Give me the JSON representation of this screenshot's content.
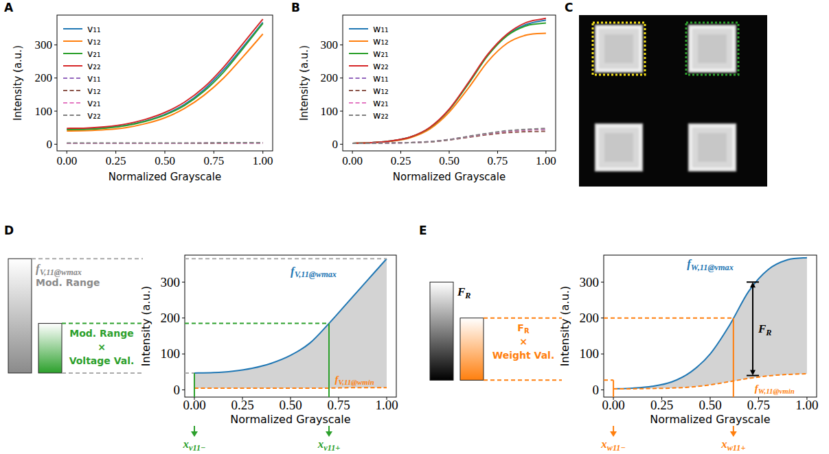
{
  "chart_data": [
    {
      "panel": "A",
      "type": "line",
      "xlabel": "Normalized Grayscale",
      "ylabel": "Intensity (a.u.)",
      "xlim": [
        -0.05,
        1.05
      ],
      "ylim": [
        -20,
        390
      ],
      "xticks": [
        {
          "value": 0,
          "label": "0.00"
        },
        {
          "value": 0.25,
          "label": "0.25"
        },
        {
          "value": 0.5,
          "label": "0.50"
        },
        {
          "value": 0.75,
          "label": "0.75"
        },
        {
          "value": 1,
          "label": "1.00"
        }
      ],
      "yticks": [
        0,
        100,
        200,
        300
      ],
      "legend": "upper left",
      "x": [
        0,
        0.1,
        0.2,
        0.3,
        0.4,
        0.5,
        0.6,
        0.7,
        0.8,
        0.9,
        1
      ],
      "series": [
        {
          "name": "v₁₁",
          "color": "#1f77b4",
          "line_style": "solid",
          "values": [
            45,
            46,
            50,
            57,
            70,
            90,
            120,
            165,
            225,
            295,
            368
          ]
        },
        {
          "name": "v₁₂",
          "color": "#ff7f0e",
          "line_style": "solid",
          "values": [
            40,
            41,
            44,
            50,
            62,
            80,
            108,
            148,
            200,
            265,
            333
          ]
        },
        {
          "name": "v₂₁",
          "color": "#2ca02c",
          "line_style": "solid",
          "values": [
            44,
            45,
            49,
            56,
            69,
            88,
            117,
            160,
            218,
            290,
            365
          ]
        },
        {
          "name": "v₂₂",
          "color": "#d62728",
          "line_style": "solid",
          "values": [
            48,
            49,
            53,
            61,
            75,
            96,
            127,
            172,
            233,
            305,
            378
          ]
        },
        {
          "name": "v₁₁",
          "color": "#9467bd",
          "line_style": "dashed",
          "values": [
            3,
            3,
            3,
            3,
            3,
            3,
            3,
            3,
            4,
            4,
            4
          ]
        },
        {
          "name": "v₁₂",
          "color": "#8c564b",
          "line_style": "dashed",
          "values": [
            3,
            3,
            3,
            3,
            3,
            3,
            3,
            3,
            3,
            4,
            4
          ]
        },
        {
          "name": "v₂₁",
          "color": "#e377c2",
          "line_style": "dashed",
          "values": [
            3,
            3,
            3,
            3,
            3,
            3,
            3,
            4,
            4,
            4,
            4
          ]
        },
        {
          "name": "v₂₂",
          "color": "#7f7f7f",
          "line_style": "dashed",
          "values": [
            4,
            4,
            4,
            4,
            4,
            4,
            4,
            4,
            5,
            5,
            5
          ]
        }
      ]
    },
    {
      "panel": "B",
      "type": "line",
      "xlabel": "Normalized Grayscale",
      "ylabel": "Intensity (a.u.)",
      "xlim": [
        -0.05,
        1.05
      ],
      "ylim": [
        -20,
        390
      ],
      "xticks": [
        {
          "value": 0,
          "label": "0.00"
        },
        {
          "value": 0.25,
          "label": "0.25"
        },
        {
          "value": 0.5,
          "label": "0.50"
        },
        {
          "value": 0.75,
          "label": "0.75"
        },
        {
          "value": 1,
          "label": "1.00"
        }
      ],
      "yticks": [
        0,
        100,
        200,
        300
      ],
      "legend": "upper left",
      "x": [
        0,
        0.1,
        0.2,
        0.3,
        0.4,
        0.5,
        0.6,
        0.7,
        0.8,
        0.9,
        1
      ],
      "series": [
        {
          "name": "w₁₁",
          "color": "#1f77b4",
          "line_style": "solid",
          "values": [
            3,
            5,
            10,
            22,
            50,
            105,
            185,
            270,
            330,
            362,
            375
          ]
        },
        {
          "name": "w₁₂",
          "color": "#ff7f0e",
          "line_style": "solid",
          "values": [
            3,
            5,
            9,
            20,
            46,
            97,
            170,
            250,
            305,
            330,
            335
          ]
        },
        {
          "name": "w₂₁",
          "color": "#2ca02c",
          "line_style": "solid",
          "values": [
            3,
            5,
            10,
            22,
            50,
            104,
            183,
            268,
            328,
            358,
            366
          ]
        },
        {
          "name": "w₂₂",
          "color": "#d62728",
          "line_style": "solid",
          "values": [
            3,
            5,
            10,
            22,
            51,
            106,
            187,
            272,
            333,
            368,
            380
          ]
        },
        {
          "name": "w₁₁",
          "color": "#9467bd",
          "line_style": "dashed",
          "values": [
            3,
            3,
            4,
            5,
            8,
            14,
            23,
            32,
            39,
            43,
            45
          ]
        },
        {
          "name": "w₁₂",
          "color": "#8c564b",
          "line_style": "dashed",
          "values": [
            3,
            3,
            4,
            5,
            7,
            13,
            21,
            29,
            35,
            38,
            39
          ]
        },
        {
          "name": "w₂₁",
          "color": "#e377c2",
          "line_style": "dashed",
          "values": [
            3,
            3,
            4,
            5,
            8,
            14,
            23,
            32,
            39,
            43,
            46
          ]
        },
        {
          "name": "w₂₂",
          "color": "#7f7f7f",
          "line_style": "dashed",
          "values": [
            3,
            3,
            4,
            5,
            8,
            14,
            24,
            33,
            41,
            45,
            48
          ]
        }
      ]
    },
    {
      "panel": "D",
      "type": "line",
      "xlabel": "Normalized Grayscale",
      "ylabel": "Intensity (a.u.)",
      "xlim": [
        -0.05,
        1.05
      ],
      "ylim": [
        -20,
        375
      ],
      "xticks": [
        {
          "value": 0,
          "label": "0.00"
        },
        {
          "value": 0.25,
          "label": "0.25"
        },
        {
          "value": 0.5,
          "label": "0.50"
        },
        {
          "value": 0.75,
          "label": "0.75"
        },
        {
          "value": 1,
          "label": "1.00"
        }
      ],
      "yticks": [
        0,
        100,
        200,
        300
      ],
      "x": [
        0,
        0.1,
        0.2,
        0.3,
        0.4,
        0.5,
        0.6,
        0.7,
        0.8,
        0.9,
        1
      ],
      "series": [
        {
          "label": {
            "main": "f",
            "sub": "V,11@wmax"
          },
          "color": "#1f77b4",
          "line_style": "solid",
          "values": [
            47,
            48,
            52,
            60,
            74,
            96,
            130,
            185,
            245,
            305,
            365
          ]
        },
        {
          "label": {
            "main": "f",
            "sub": "V,11@wmin"
          },
          "color": "#ff7f0e",
          "line_style": "dashed",
          "values": [
            5,
            5,
            5,
            5,
            5,
            5,
            5,
            5,
            6,
            6,
            6
          ]
        }
      ],
      "guide": {
        "bar": [
          47,
          365
        ],
        "sub_bar": [
          47,
          185
        ],
        "x_minus": 0,
        "x_plus": 0.7,
        "colors": [
          "#aaaaaa",
          "#2ca02c",
          "#8a8a8a"
        ],
        "bar_label": {
          "main": "f",
          "sub": "V,11@wmax"
        },
        "bar_text": "Mod. Range",
        "product_text": [
          {
            "main": "Mod. Range"
          },
          {
            "main": "×"
          },
          {
            "main": "Voltage Val."
          }
        ],
        "x_minus_label": {
          "main": "x",
          "sub": "v11−"
        },
        "x_plus_label": {
          "main": "x",
          "sub": "v11+"
        }
      }
    },
    {
      "panel": "E",
      "type": "line",
      "xlabel": "Normalized Grayscale",
      "ylabel": "Intensity (a.u.)",
      "xlim": [
        -0.05,
        1.05
      ],
      "ylim": [
        -20,
        375
      ],
      "xticks": [
        {
          "value": 0,
          "label": "0.00"
        },
        {
          "value": 0.25,
          "label": "0.25"
        },
        {
          "value": 0.5,
          "label": "0.50"
        },
        {
          "value": 0.75,
          "label": "0.75"
        },
        {
          "value": 1,
          "label": "1.00"
        }
      ],
      "yticks": [
        0,
        100,
        200,
        300
      ],
      "x": [
        0,
        0.1,
        0.2,
        0.3,
        0.4,
        0.5,
        0.6,
        0.7,
        0.8,
        0.9,
        1
      ],
      "series": [
        {
          "label": {
            "main": "f",
            "sub": "W,11@vmax"
          },
          "color": "#1f77b4",
          "line_style": "solid",
          "values": [
            3,
            5,
            10,
            22,
            50,
            100,
            180,
            275,
            335,
            362,
            368
          ]
        },
        {
          "label": {
            "main": "f",
            "sub": "W,11@vmin"
          },
          "color": "#ff7f0e",
          "line_style": "dashed",
          "values": [
            3,
            3,
            4,
            5,
            8,
            14,
            23,
            32,
            39,
            43,
            45
          ]
        }
      ],
      "guide": {
        "bar": [
          27,
          300
        ],
        "sub_bar": [
          27,
          200
        ],
        "x_minus": 0,
        "x_plus": 0.62,
        "colors": [
          "#ff7f0e",
          "#ff7f0e",
          "#000000"
        ],
        "bar_label": {
          "main": "F",
          "sub": "R"
        },
        "product_text": [
          {
            "main": "F",
            "sub": "R"
          },
          {
            "main": "×"
          },
          {
            "main": "Weight Val."
          }
        ],
        "x_minus_label": {
          "main": "x",
          "sub": "w11−"
        },
        "x_plus_label": {
          "main": "x",
          "sub": "w11+"
        },
        "range": [
          40,
          300
        ],
        "range_x": 0.72,
        "range_label": {
          "main": "F",
          "sub": "R"
        }
      }
    }
  ],
  "image_panel": {
    "panel": "C"
  }
}
